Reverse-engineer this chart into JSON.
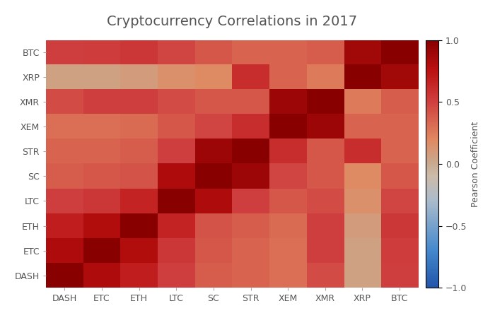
{
  "title": "Cryptocurrency Correlations in 2017",
  "title_fontsize": 14,
  "labels": [
    "DASH",
    "ETC",
    "ETH",
    "LTC",
    "SC",
    "STR",
    "XEM",
    "XMR",
    "XRP",
    "BTC"
  ],
  "corr_matrix": [
    [
      1.0,
      0.82,
      0.68,
      0.5,
      0.38,
      0.35,
      0.3,
      0.45,
      0.05,
      0.5
    ],
    [
      0.82,
      1.0,
      0.8,
      0.55,
      0.4,
      0.35,
      0.3,
      0.5,
      0.05,
      0.52
    ],
    [
      0.68,
      0.8,
      1.0,
      0.65,
      0.42,
      0.38,
      0.32,
      0.5,
      0.08,
      0.55
    ],
    [
      0.5,
      0.55,
      0.65,
      1.0,
      0.82,
      0.5,
      0.4,
      0.45,
      0.15,
      0.48
    ],
    [
      0.38,
      0.4,
      0.42,
      0.82,
      1.0,
      0.9,
      0.48,
      0.4,
      0.18,
      0.4
    ],
    [
      0.35,
      0.35,
      0.38,
      0.5,
      0.9,
      1.0,
      0.6,
      0.4,
      0.6,
      0.35
    ],
    [
      0.3,
      0.3,
      0.32,
      0.4,
      0.48,
      0.6,
      1.0,
      0.9,
      0.35,
      0.35
    ],
    [
      0.45,
      0.5,
      0.5,
      0.45,
      0.4,
      0.4,
      0.9,
      1.0,
      0.25,
      0.38
    ],
    [
      0.05,
      0.05,
      0.08,
      0.15,
      0.18,
      0.6,
      0.35,
      0.25,
      1.0,
      0.88
    ],
    [
      0.5,
      0.52,
      0.55,
      0.48,
      0.4,
      0.35,
      0.35,
      0.38,
      0.88,
      1.0
    ]
  ],
  "background_color": "#ffffff",
  "colorbar_label": "Pearson Coefficient",
  "text_color": "#555555",
  "vmin": -1,
  "vmax": 1,
  "tick_fontsize": 9,
  "cbar_fontsize": 9
}
